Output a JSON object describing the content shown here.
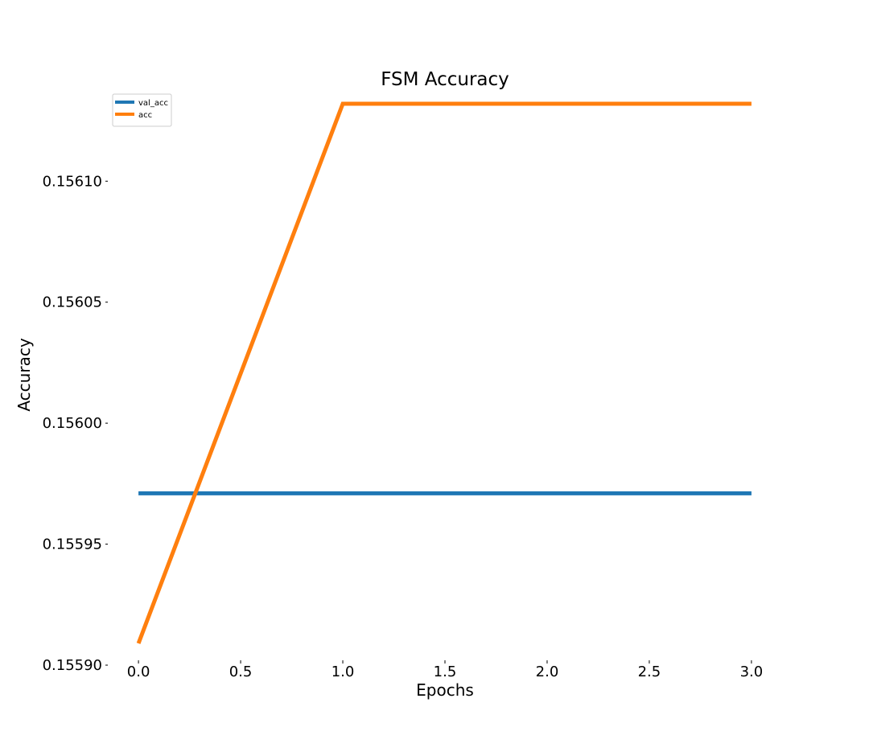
{
  "chart_data": {
    "type": "line",
    "title": "FSM Accuracy",
    "xlabel": "Epochs",
    "ylabel": "Accuracy",
    "x": [
      0,
      1,
      2,
      3
    ],
    "xlim": [
      -0.15,
      3.15
    ],
    "ylim": [
      0.155903,
      0.156132
    ],
    "xticks": [
      0.0,
      0.5,
      1.0,
      1.5,
      2.0,
      2.5,
      3.0
    ],
    "xtick_labels": [
      "0.0",
      "0.5",
      "1.0",
      "1.5",
      "2.0",
      "2.5",
      "3.0"
    ],
    "yticks": [
      0.1559,
      0.15595,
      0.156,
      0.15605,
      0.1561
    ],
    "ytick_labels": [
      "0.15590",
      "0.15595",
      "0.15600",
      "0.15605",
      "0.15610"
    ],
    "grid": false,
    "legend_position": "upper-left",
    "series": [
      {
        "name": "val_acc",
        "color": "#1f77b4",
        "values": [
          0.155971,
          0.155971,
          0.155971,
          0.155971
        ]
      },
      {
        "name": "acc",
        "color": "#ff7f0e",
        "values": [
          0.155909,
          0.156132,
          0.156132,
          0.156132
        ]
      }
    ]
  }
}
